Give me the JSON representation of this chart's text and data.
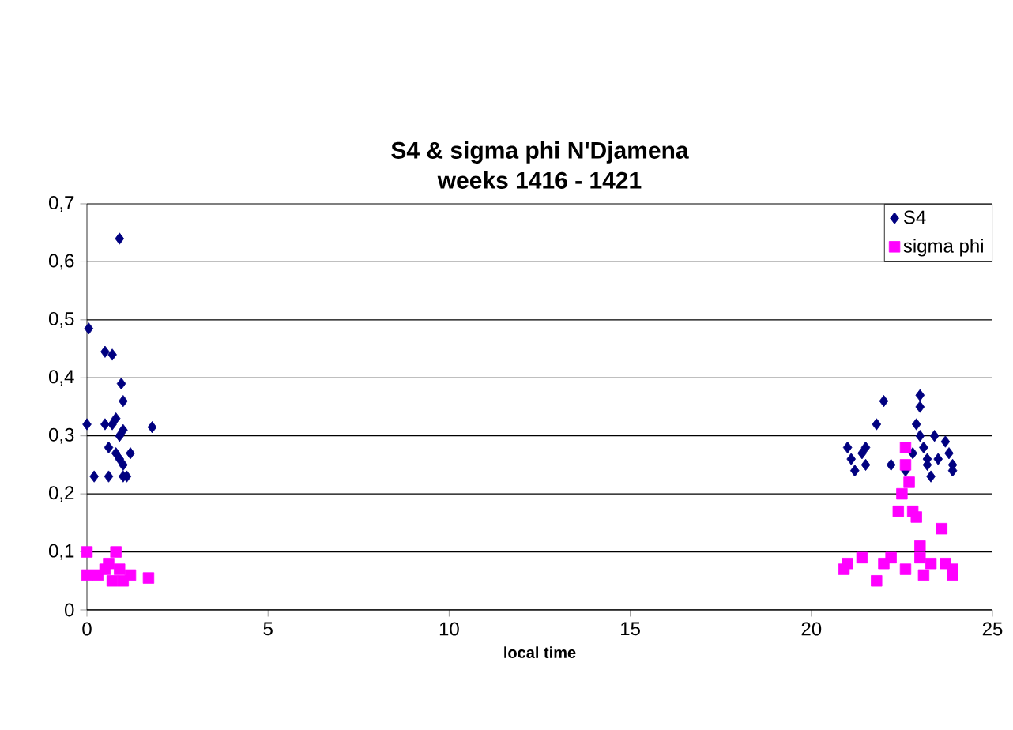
{
  "chart_data": {
    "type": "scatter",
    "title": "S4 & sigma phi N'Djamena",
    "subtitle": "weeks 1416 - 1421",
    "xlabel": "local time",
    "xlim": [
      0,
      25
    ],
    "xticks": [
      0,
      5,
      10,
      15,
      20,
      25
    ],
    "ylim": [
      0,
      0.7
    ],
    "yticks": [
      {
        "value": 0,
        "label": "0"
      },
      {
        "value": 0.1,
        "label": "0,1"
      },
      {
        "value": 0.2,
        "label": "0,2"
      },
      {
        "value": 0.3,
        "label": "0,3"
      },
      {
        "value": 0.4,
        "label": "0,4"
      },
      {
        "value": 0.5,
        "label": "0,5"
      },
      {
        "value": 0.6,
        "label": "0,6"
      },
      {
        "value": 0.7,
        "label": "0,7"
      }
    ],
    "grid": "y",
    "legend": "top right",
    "series": [
      {
        "name": "S4",
        "color": "#000080",
        "marker": "diamond",
        "x": [
          0.0,
          0.05,
          0.2,
          0.5,
          0.7,
          0.6,
          0.8,
          0.9,
          0.95,
          1.0,
          0.9,
          1.0,
          0.6,
          0.8,
          1.0,
          1.1,
          1.2,
          0.7,
          1.8,
          0.9,
          1.0,
          0.5,
          21.0,
          21.1,
          21.2,
          21.4,
          21.5,
          21.5,
          21.8,
          22.0,
          22.2,
          22.6,
          22.9,
          23.0,
          23.0,
          23.0,
          23.1,
          23.2,
          23.3,
          23.4,
          23.5,
          23.7,
          23.8,
          23.9,
          23.9,
          22.8,
          23.2
        ],
        "values": [
          0.32,
          0.485,
          0.23,
          0.445,
          0.44,
          0.28,
          0.33,
          0.64,
          0.39,
          0.36,
          0.3,
          0.31,
          0.23,
          0.27,
          0.25,
          0.23,
          0.27,
          0.32,
          0.315,
          0.26,
          0.23,
          0.32,
          0.28,
          0.26,
          0.24,
          0.27,
          0.25,
          0.28,
          0.32,
          0.36,
          0.25,
          0.24,
          0.32,
          0.37,
          0.35,
          0.3,
          0.28,
          0.26,
          0.23,
          0.3,
          0.26,
          0.29,
          0.27,
          0.25,
          0.24,
          0.27,
          0.25
        ]
      },
      {
        "name": "sigma phi",
        "color": "#ff00ff",
        "marker": "square",
        "x": [
          0.0,
          0.0,
          0.3,
          0.5,
          0.8,
          0.9,
          1.0,
          1.2,
          1.7,
          0.7,
          0.6,
          20.9,
          21.0,
          21.4,
          21.8,
          22.0,
          22.2,
          22.6,
          22.6,
          22.7,
          22.8,
          22.9,
          23.0,
          23.0,
          23.1,
          23.3,
          23.6,
          23.7,
          23.9,
          23.9,
          22.5,
          22.4,
          22.6
        ],
        "values": [
          0.1,
          0.06,
          0.06,
          0.07,
          0.1,
          0.07,
          0.05,
          0.06,
          0.055,
          0.05,
          0.08,
          0.07,
          0.08,
          0.09,
          0.05,
          0.08,
          0.09,
          0.07,
          0.25,
          0.22,
          0.17,
          0.16,
          0.11,
          0.09,
          0.06,
          0.08,
          0.14,
          0.08,
          0.06,
          0.07,
          0.2,
          0.17,
          0.28
        ]
      }
    ]
  }
}
